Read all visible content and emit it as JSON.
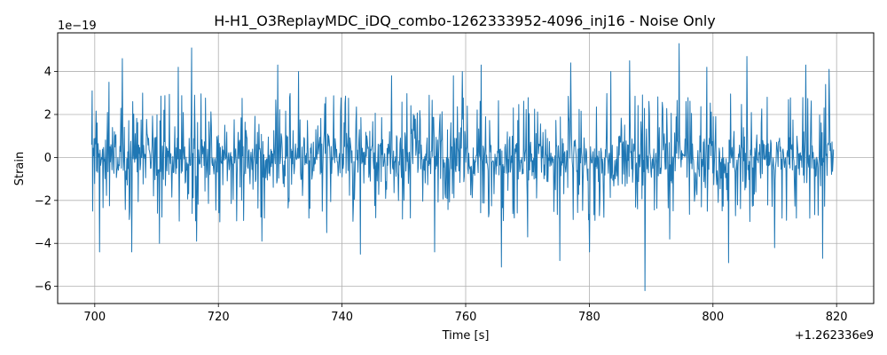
{
  "chart_data": {
    "type": "line",
    "title": "H-H1_O3ReplayMDC_iDQ_combo-1262333952-4096_inj16 - Noise Only",
    "xlabel": "Time [s]",
    "ylabel": "Strain",
    "x_offset_label": "+1.262336e9",
    "y_scale_label": "1e−19",
    "xlim": [
      694,
      826
    ],
    "ylim": [
      -6.8,
      5.8
    ],
    "x_ticks": [
      700,
      720,
      740,
      760,
      780,
      800,
      820
    ],
    "x_tick_labels": [
      "700",
      "720",
      "740",
      "760",
      "780",
      "800",
      "820"
    ],
    "y_ticks": [
      -6,
      -4,
      -2,
      0,
      2,
      4
    ],
    "y_tick_labels": [
      "−6",
      "−4",
      "−2",
      "0",
      "2",
      "4"
    ],
    "grid": true,
    "series": [
      {
        "color": "#1f77b4",
        "x_start": 699.5,
        "x_end": 819.5,
        "sample_count": 1500,
        "core_amplitude": 1.3,
        "spikes": [
          {
            "x": 699.6,
            "y": 3.1
          },
          {
            "x": 699.7,
            "y": -2.5
          },
          {
            "x": 700.8,
            "y": -4.4
          },
          {
            "x": 702.3,
            "y": 3.5
          },
          {
            "x": 704.5,
            "y": 4.6
          },
          {
            "x": 706.0,
            "y": -4.4
          },
          {
            "x": 710.5,
            "y": -4.0
          },
          {
            "x": 713.5,
            "y": 4.2
          },
          {
            "x": 715.7,
            "y": 5.1
          },
          {
            "x": 716.5,
            "y": -3.9
          },
          {
            "x": 720.2,
            "y": -3.0
          },
          {
            "x": 727.0,
            "y": -3.9
          },
          {
            "x": 729.6,
            "y": 4.3
          },
          {
            "x": 733.0,
            "y": 4.0
          },
          {
            "x": 737.5,
            "y": -3.5
          },
          {
            "x": 743.0,
            "y": -4.5
          },
          {
            "x": 748.0,
            "y": 3.8
          },
          {
            "x": 755.0,
            "y": -4.4
          },
          {
            "x": 758.0,
            "y": 3.8
          },
          {
            "x": 759.5,
            "y": 4.0
          },
          {
            "x": 762.5,
            "y": 4.3
          },
          {
            "x": 765.8,
            "y": -5.1
          },
          {
            "x": 770.0,
            "y": -3.7
          },
          {
            "x": 775.2,
            "y": -4.8
          },
          {
            "x": 777.0,
            "y": 4.4
          },
          {
            "x": 780.0,
            "y": -4.4
          },
          {
            "x": 783.5,
            "y": 4.0
          },
          {
            "x": 786.5,
            "y": 4.5
          },
          {
            "x": 789.0,
            "y": -6.2
          },
          {
            "x": 793.0,
            "y": -3.8
          },
          {
            "x": 794.5,
            "y": 5.3
          },
          {
            "x": 799.0,
            "y": 4.2
          },
          {
            "x": 802.5,
            "y": -4.9
          },
          {
            "x": 805.5,
            "y": 4.7
          },
          {
            "x": 810.0,
            "y": -4.2
          },
          {
            "x": 815.0,
            "y": 4.3
          },
          {
            "x": 817.7,
            "y": -4.7
          },
          {
            "x": 818.2,
            "y": 3.4
          },
          {
            "x": 818.8,
            "y": 4.1
          }
        ]
      }
    ]
  }
}
